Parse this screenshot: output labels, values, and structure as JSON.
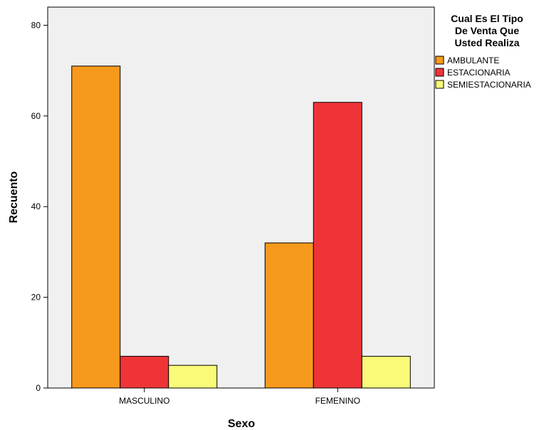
{
  "chart_data": {
    "type": "bar",
    "categories": [
      "MASCULINO",
      "FEMENINO"
    ],
    "series": [
      {
        "name": "AMBULANTE",
        "values": [
          71,
          32
        ],
        "color": "#f7991c"
      },
      {
        "name": "ESTACIONARIA",
        "values": [
          7,
          63
        ],
        "color": "#ef3438"
      },
      {
        "name": "SEMIESTACIONARIA",
        "values": [
          5,
          7
        ],
        "color": "#fafa78"
      }
    ],
    "xlabel": "Sexo",
    "ylabel": "Recuento",
    "ylim": [
      0,
      84
    ],
    "yticks": [
      0,
      20,
      40,
      60,
      80
    ],
    "legend": {
      "title_lines": [
        "Cual Es El Tipo",
        "De Venta Que",
        "Usted Realiza"
      ],
      "position": "right"
    },
    "plot_background": "#f0f0f0",
    "grid": false
  }
}
